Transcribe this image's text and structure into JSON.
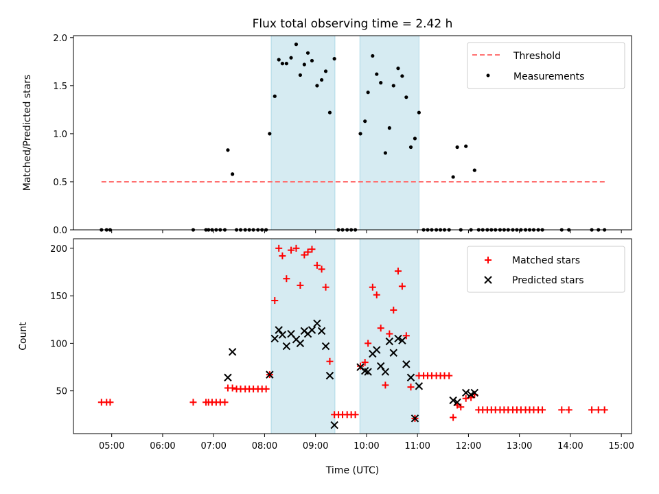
{
  "chart_data": [
    {
      "type": "scatter",
      "title": "Flux total observing time = 2.42 h",
      "xlabel": "",
      "ylabel": "Matched/Predicted stars",
      "xlim_hours": [
        4.25,
        15.2
      ],
      "ylim": [
        0,
        2.02
      ],
      "yticks": [
        0.0,
        0.5,
        1.0,
        1.5,
        2.0
      ],
      "ytick_labels": [
        "0.0",
        "0.5",
        "1.0",
        "1.5",
        "2.0"
      ],
      "x_tick_hours": [
        5,
        6,
        7,
        8,
        9,
        10,
        11,
        12,
        13,
        14,
        15
      ],
      "shaded_intervals_hours": [
        [
          8.13,
          9.38
        ],
        [
          9.87,
          11.03
        ]
      ],
      "legend": {
        "position": "top-right",
        "entries": [
          "Threshold",
          "Measurements"
        ]
      },
      "threshold": {
        "name": "Threshold",
        "value": 0.5,
        "x_start": 4.8,
        "x_end": 14.7,
        "color": "#ff7070"
      },
      "measurements": {
        "name": "Measurements",
        "color": "#000000",
        "points": [
          [
            4.8,
            0
          ],
          [
            4.9,
            0
          ],
          [
            4.97,
            0
          ],
          [
            6.6,
            0
          ],
          [
            6.85,
            0
          ],
          [
            6.9,
            0
          ],
          [
            6.97,
            0
          ],
          [
            7.05,
            0
          ],
          [
            7.13,
            0
          ],
          [
            7.22,
            0
          ],
          [
            7.28,
            0.83
          ],
          [
            7.37,
            0.58
          ],
          [
            7.45,
            0
          ],
          [
            7.53,
            0
          ],
          [
            7.62,
            0
          ],
          [
            7.7,
            0
          ],
          [
            7.78,
            0
          ],
          [
            7.87,
            0
          ],
          [
            7.95,
            0
          ],
          [
            8.03,
            0
          ],
          [
            8.1,
            1.0
          ],
          [
            8.2,
            1.39
          ],
          [
            8.28,
            1.77
          ],
          [
            8.35,
            1.73
          ],
          [
            8.43,
            1.73
          ],
          [
            8.52,
            1.79
          ],
          [
            8.62,
            1.93
          ],
          [
            8.7,
            1.61
          ],
          [
            8.78,
            1.72
          ],
          [
            8.85,
            1.84
          ],
          [
            8.93,
            1.76
          ],
          [
            9.03,
            1.5
          ],
          [
            9.12,
            1.56
          ],
          [
            9.2,
            1.65
          ],
          [
            9.28,
            1.22
          ],
          [
            9.37,
            1.78
          ],
          [
            9.45,
            0
          ],
          [
            9.53,
            0
          ],
          [
            9.62,
            0
          ],
          [
            9.7,
            0
          ],
          [
            9.78,
            0
          ],
          [
            9.88,
            1.0
          ],
          [
            9.97,
            1.13
          ],
          [
            10.03,
            1.43
          ],
          [
            10.12,
            1.81
          ],
          [
            10.2,
            1.62
          ],
          [
            10.28,
            1.53
          ],
          [
            10.37,
            0.8
          ],
          [
            10.45,
            1.06
          ],
          [
            10.53,
            1.5
          ],
          [
            10.62,
            1.68
          ],
          [
            10.7,
            1.6
          ],
          [
            10.78,
            1.38
          ],
          [
            10.87,
            0.86
          ],
          [
            10.95,
            0.95
          ],
          [
            11.03,
            1.22
          ],
          [
            11.12,
            0
          ],
          [
            11.2,
            0
          ],
          [
            11.28,
            0
          ],
          [
            11.37,
            0
          ],
          [
            11.45,
            0
          ],
          [
            11.53,
            0
          ],
          [
            11.62,
            0
          ],
          [
            11.7,
            0.55
          ],
          [
            11.78,
            0.86
          ],
          [
            11.95,
            0.87
          ],
          [
            12.12,
            0.62
          ],
          [
            11.85,
            0
          ],
          [
            12.05,
            0
          ],
          [
            12.2,
            0
          ],
          [
            12.28,
            0
          ],
          [
            12.37,
            0
          ],
          [
            12.45,
            0
          ],
          [
            12.53,
            0
          ],
          [
            12.62,
            0
          ],
          [
            12.7,
            0
          ],
          [
            12.78,
            0
          ],
          [
            12.87,
            0
          ],
          [
            12.95,
            0
          ],
          [
            13.03,
            0
          ],
          [
            13.12,
            0
          ],
          [
            13.2,
            0
          ],
          [
            13.28,
            0
          ],
          [
            13.37,
            0
          ],
          [
            13.45,
            0
          ],
          [
            13.83,
            0
          ],
          [
            13.97,
            0
          ],
          [
            14.42,
            0
          ],
          [
            14.55,
            0
          ],
          [
            14.67,
            0
          ]
        ]
      }
    },
    {
      "type": "scatter",
      "title": "",
      "xlabel": "Time (UTC)",
      "ylabel": "Count",
      "xlim_hours": [
        4.25,
        15.2
      ],
      "ylim": [
        5,
        210
      ],
      "yticks": [
        50,
        100,
        150,
        200
      ],
      "ytick_labels": [
        "50",
        "100",
        "150",
        "200"
      ],
      "x_tick_hours": [
        5,
        6,
        7,
        8,
        9,
        10,
        11,
        12,
        13,
        14,
        15
      ],
      "x_tick_labels": [
        "05:00",
        "06:00",
        "07:00",
        "08:00",
        "09:00",
        "10:00",
        "11:00",
        "12:00",
        "13:00",
        "14:00",
        "15:00"
      ],
      "shaded_intervals_hours": [
        [
          8.13,
          9.38
        ],
        [
          9.87,
          11.03
        ]
      ],
      "legend": {
        "position": "top-right",
        "entries": [
          "Matched stars",
          "Predicted stars"
        ]
      },
      "matched": {
        "name": "Matched stars",
        "color": "#ff0000",
        "points": [
          [
            4.8,
            38
          ],
          [
            4.9,
            38
          ],
          [
            4.97,
            38
          ],
          [
            6.6,
            38
          ],
          [
            6.85,
            38
          ],
          [
            6.9,
            38
          ],
          [
            6.97,
            38
          ],
          [
            7.05,
            38
          ],
          [
            7.13,
            38
          ],
          [
            7.22,
            38
          ],
          [
            7.28,
            53
          ],
          [
            7.37,
            53
          ],
          [
            7.45,
            52
          ],
          [
            7.53,
            52
          ],
          [
            7.62,
            52
          ],
          [
            7.7,
            52
          ],
          [
            7.78,
            52
          ],
          [
            7.87,
            52
          ],
          [
            7.95,
            52
          ],
          [
            8.03,
            52
          ],
          [
            8.1,
            67
          ],
          [
            8.2,
            145
          ],
          [
            8.28,
            200
          ],
          [
            8.35,
            192
          ],
          [
            8.43,
            168
          ],
          [
            8.52,
            198
          ],
          [
            8.62,
            200
          ],
          [
            8.7,
            161
          ],
          [
            8.78,
            193
          ],
          [
            8.85,
            196
          ],
          [
            8.93,
            199
          ],
          [
            9.03,
            182
          ],
          [
            9.12,
            178
          ],
          [
            9.2,
            159
          ],
          [
            9.28,
            81
          ],
          [
            9.37,
            25
          ],
          [
            9.45,
            25
          ],
          [
            9.53,
            25
          ],
          [
            9.62,
            25
          ],
          [
            9.7,
            25
          ],
          [
            9.78,
            25
          ],
          [
            9.88,
            76
          ],
          [
            9.97,
            80
          ],
          [
            10.03,
            100
          ],
          [
            10.12,
            159
          ],
          [
            10.2,
            151
          ],
          [
            10.28,
            116
          ],
          [
            10.37,
            56
          ],
          [
            10.45,
            110
          ],
          [
            10.53,
            135
          ],
          [
            10.62,
            176
          ],
          [
            10.7,
            160
          ],
          [
            10.78,
            108
          ],
          [
            10.87,
            54
          ],
          [
            10.95,
            21
          ],
          [
            11.03,
            66
          ],
          [
            11.12,
            66
          ],
          [
            11.2,
            66
          ],
          [
            11.28,
            66
          ],
          [
            11.37,
            66
          ],
          [
            11.45,
            66
          ],
          [
            11.53,
            66
          ],
          [
            11.62,
            66
          ],
          [
            11.7,
            22
          ],
          [
            11.78,
            35
          ],
          [
            11.85,
            33
          ],
          [
            11.95,
            42
          ],
          [
            12.05,
            43
          ],
          [
            12.12,
            46
          ],
          [
            12.2,
            30
          ],
          [
            12.28,
            30
          ],
          [
            12.37,
            30
          ],
          [
            12.45,
            30
          ],
          [
            12.53,
            30
          ],
          [
            12.62,
            30
          ],
          [
            12.7,
            30
          ],
          [
            12.78,
            30
          ],
          [
            12.87,
            30
          ],
          [
            12.95,
            30
          ],
          [
            13.03,
            30
          ],
          [
            13.12,
            30
          ],
          [
            13.2,
            30
          ],
          [
            13.28,
            30
          ],
          [
            13.37,
            30
          ],
          [
            13.45,
            30
          ],
          [
            13.83,
            30
          ],
          [
            13.97,
            30
          ],
          [
            14.42,
            30
          ],
          [
            14.55,
            30
          ],
          [
            14.67,
            30
          ]
        ]
      },
      "predicted": {
        "name": "Predicted stars",
        "color": "#000000",
        "points": [
          [
            7.28,
            64
          ],
          [
            7.37,
            91
          ],
          [
            8.1,
            67
          ],
          [
            8.2,
            105
          ],
          [
            8.28,
            114
          ],
          [
            8.35,
            109
          ],
          [
            8.43,
            97
          ],
          [
            8.52,
            110
          ],
          [
            8.62,
            104
          ],
          [
            8.7,
            100
          ],
          [
            8.78,
            113
          ],
          [
            8.85,
            110
          ],
          [
            8.93,
            114
          ],
          [
            9.03,
            121
          ],
          [
            9.12,
            113
          ],
          [
            9.2,
            97
          ],
          [
            9.28,
            66
          ],
          [
            9.37,
            14
          ],
          [
            9.88,
            75
          ],
          [
            9.97,
            71
          ],
          [
            10.03,
            70
          ],
          [
            10.12,
            89
          ],
          [
            10.2,
            93
          ],
          [
            10.28,
            76
          ],
          [
            10.37,
            70
          ],
          [
            10.45,
            102
          ],
          [
            10.53,
            90
          ],
          [
            10.62,
            105
          ],
          [
            10.7,
            103
          ],
          [
            10.78,
            78
          ],
          [
            10.87,
            64
          ],
          [
            10.95,
            21
          ],
          [
            11.03,
            55
          ],
          [
            11.7,
            40
          ],
          [
            11.78,
            38
          ],
          [
            11.95,
            48
          ],
          [
            12.05,
            46
          ],
          [
            12.12,
            48
          ]
        ]
      }
    }
  ]
}
